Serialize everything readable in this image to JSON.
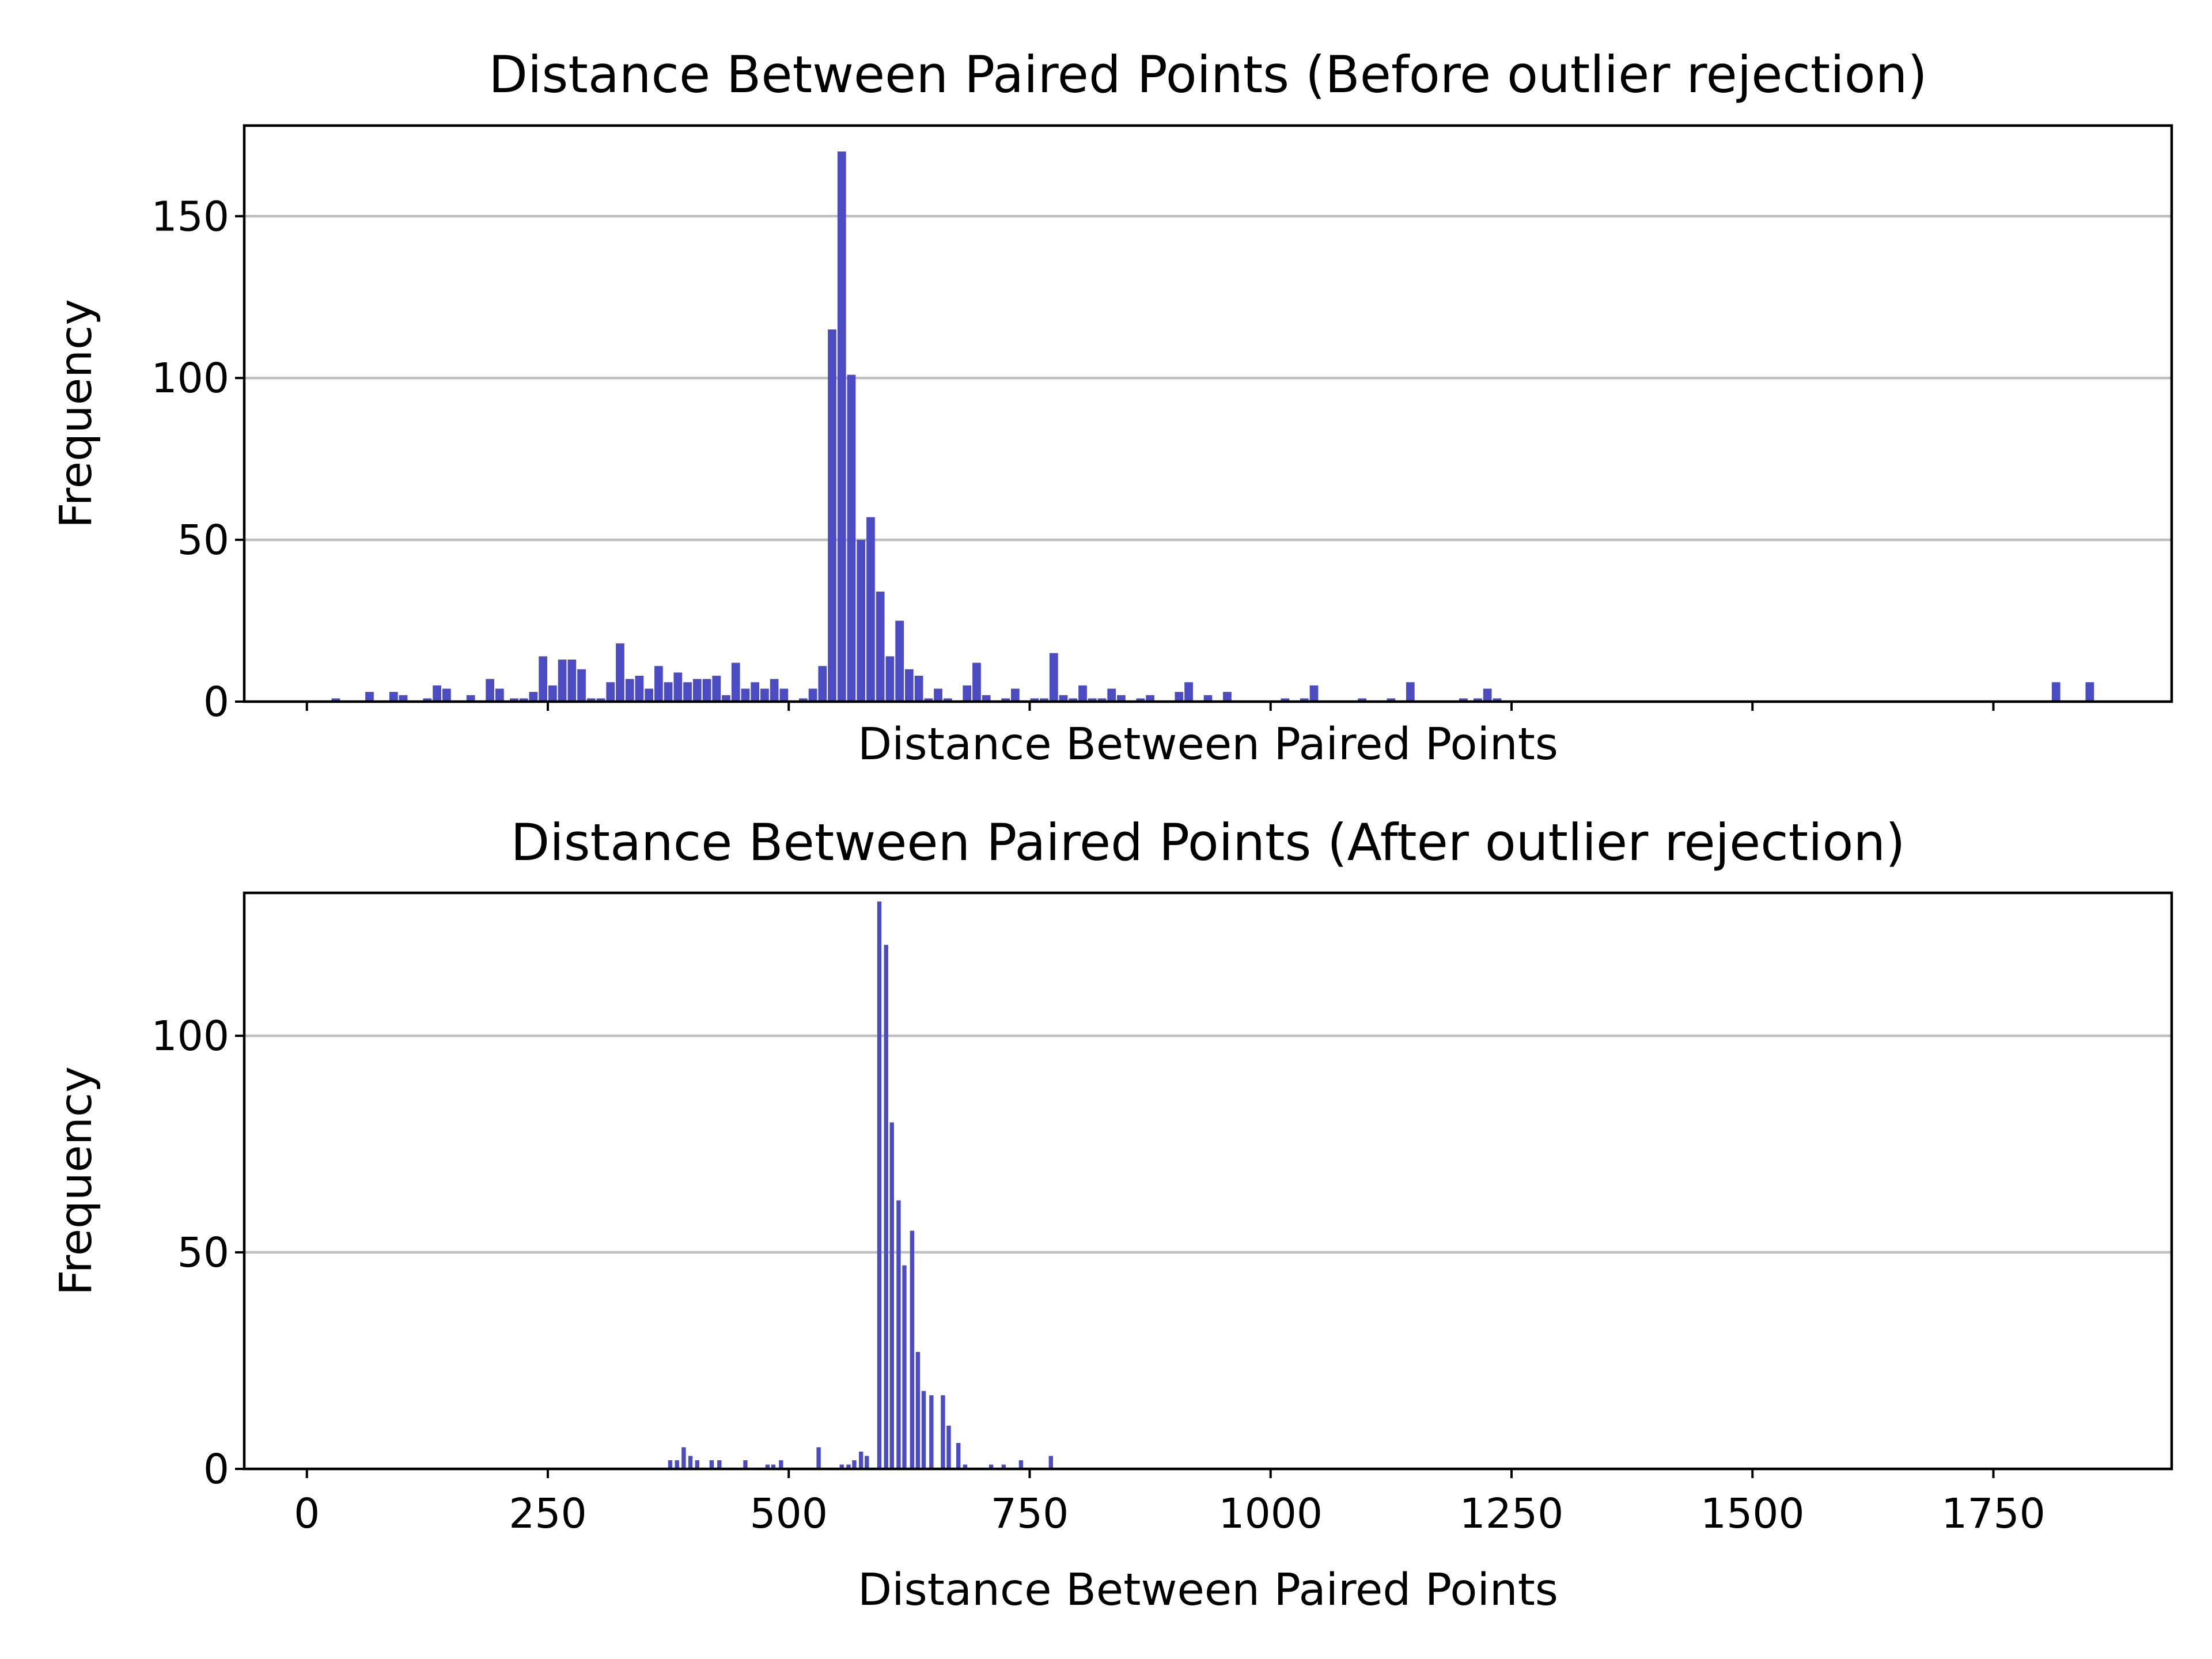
{
  "chart_data": [
    {
      "type": "bar",
      "title": "Distance Between Paired Points (Before outlier rejection)",
      "xlabel": "Distance Between Paired Points",
      "ylabel": "Frequency",
      "xlim": [
        -65,
        1935
      ],
      "ylim": [
        0,
        178
      ],
      "xticks": [
        0,
        250,
        500,
        750,
        1000,
        1250,
        1500,
        1750
      ],
      "show_xtick_labels": false,
      "yticks": [
        0,
        50,
        100,
        150
      ],
      "bin_width": 10,
      "grid": "y",
      "bar_color": "#4b4bc3",
      "bins": [
        [
          30,
          1
        ],
        [
          65,
          3
        ],
        [
          90,
          3
        ],
        [
          100,
          2
        ],
        [
          125,
          1
        ],
        [
          135,
          5
        ],
        [
          145,
          4
        ],
        [
          170,
          2
        ],
        [
          190,
          7
        ],
        [
          200,
          4
        ],
        [
          215,
          1
        ],
        [
          225,
          1
        ],
        [
          235,
          3
        ],
        [
          245,
          14
        ],
        [
          255,
          5
        ],
        [
          265,
          13
        ],
        [
          275,
          13
        ],
        [
          285,
          10
        ],
        [
          295,
          1
        ],
        [
          305,
          1
        ],
        [
          315,
          6
        ],
        [
          325,
          18
        ],
        [
          335,
          7
        ],
        [
          345,
          8
        ],
        [
          355,
          4
        ],
        [
          365,
          11
        ],
        [
          375,
          6
        ],
        [
          385,
          9
        ],
        [
          395,
          6
        ],
        [
          405,
          7
        ],
        [
          415,
          7
        ],
        [
          425,
          8
        ],
        [
          435,
          2
        ],
        [
          445,
          12
        ],
        [
          455,
          4
        ],
        [
          465,
          6
        ],
        [
          475,
          4
        ],
        [
          485,
          7
        ],
        [
          495,
          4
        ],
        [
          515,
          1
        ],
        [
          525,
          4
        ],
        [
          535,
          11
        ],
        [
          545,
          115
        ],
        [
          555,
          170
        ],
        [
          565,
          101
        ],
        [
          575,
          50
        ],
        [
          585,
          57
        ],
        [
          595,
          34
        ],
        [
          605,
          14
        ],
        [
          615,
          25
        ],
        [
          625,
          10
        ],
        [
          635,
          8
        ],
        [
          645,
          1
        ],
        [
          655,
          4
        ],
        [
          665,
          1
        ],
        [
          685,
          5
        ],
        [
          695,
          12
        ],
        [
          705,
          2
        ],
        [
          725,
          1
        ],
        [
          735,
          4
        ],
        [
          755,
          1
        ],
        [
          765,
          1
        ],
        [
          775,
          15
        ],
        [
          785,
          2
        ],
        [
          795,
          1
        ],
        [
          805,
          5
        ],
        [
          815,
          1
        ],
        [
          825,
          1
        ],
        [
          835,
          4
        ],
        [
          845,
          2
        ],
        [
          865,
          1
        ],
        [
          875,
          2
        ],
        [
          905,
          3
        ],
        [
          915,
          6
        ],
        [
          935,
          2
        ],
        [
          955,
          3
        ],
        [
          1015,
          1
        ],
        [
          1035,
          1
        ],
        [
          1045,
          5
        ],
        [
          1095,
          1
        ],
        [
          1125,
          1
        ],
        [
          1145,
          6
        ],
        [
          1200,
          1
        ],
        [
          1215,
          1
        ],
        [
          1225,
          4
        ],
        [
          1235,
          1
        ],
        [
          1815,
          6
        ],
        [
          1850,
          6
        ]
      ]
    },
    {
      "type": "bar",
      "title": "Distance Between Paired Points (After outlier rejection)",
      "xlabel": "Distance Between Paired Points",
      "ylabel": "Frequency",
      "xlim": [
        -65,
        1935
      ],
      "ylim": [
        0,
        133
      ],
      "xticks": [
        0,
        250,
        500,
        750,
        1000,
        1250,
        1500,
        1750
      ],
      "show_xtick_labels": true,
      "yticks": [
        0,
        50,
        100
      ],
      "bin_width": 5,
      "grid": "y",
      "bar_color": "#4b4bc3",
      "bins": [
        [
          377,
          2
        ],
        [
          384,
          2
        ],
        [
          391,
          5
        ],
        [
          398,
          3
        ],
        [
          405,
          2
        ],
        [
          420,
          2
        ],
        [
          428,
          2
        ],
        [
          455,
          2
        ],
        [
          478,
          1
        ],
        [
          484,
          1
        ],
        [
          492,
          2
        ],
        [
          531,
          5
        ],
        [
          555,
          1
        ],
        [
          562,
          1
        ],
        [
          568,
          2
        ],
        [
          575,
          4
        ],
        [
          581,
          3
        ],
        [
          594,
          131
        ],
        [
          601,
          121
        ],
        [
          607,
          80
        ],
        [
          614,
          62
        ],
        [
          620,
          47
        ],
        [
          628,
          55
        ],
        [
          634,
          27
        ],
        [
          640,
          18
        ],
        [
          648,
          17
        ],
        [
          660,
          17
        ],
        [
          666,
          10
        ],
        [
          676,
          6
        ],
        [
          683,
          1
        ],
        [
          710,
          1
        ],
        [
          723,
          1
        ],
        [
          741,
          2
        ],
        [
          772,
          3
        ]
      ]
    }
  ]
}
